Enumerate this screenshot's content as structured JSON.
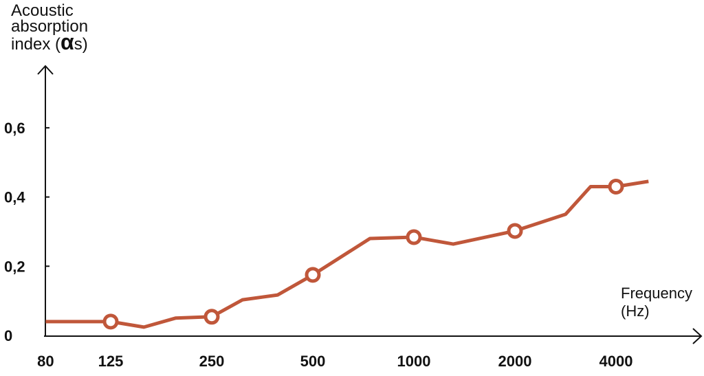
{
  "chart_data": {
    "type": "line",
    "ylabel_lines": [
      "Acoustic",
      "absorption",
      "index ("
    ],
    "ylabel_symbol": "α",
    "ylabel_subscript": "s)",
    "xlabel_lines": [
      "Frequency",
      "(Hz)"
    ],
    "x_scale": "log",
    "x_ticks": [
      80,
      125,
      250,
      500,
      1000,
      2000,
      4000
    ],
    "x_tick_labels": [
      "80",
      "125",
      "250",
      "500",
      "1000",
      "2000",
      "4000"
    ],
    "y_ticks": [
      0,
      0.2,
      0.4,
      0.6
    ],
    "y_tick_labels": [
      "0",
      "0,2",
      "0,4",
      "0,6"
    ],
    "xlim": [
      80,
      8000
    ],
    "ylim": [
      0,
      0.78
    ],
    "grid": false,
    "line_color": "#c0573a",
    "series": [
      {
        "x": [
          80,
          125,
          157,
          195,
          250,
          309,
          393,
          500,
          740,
          1000,
          1310,
          2000,
          2830,
          3360,
          4000,
          5000
        ],
        "y": [
          0.04,
          0.04,
          0.024,
          0.05,
          0.054,
          0.103,
          0.117,
          0.175,
          0.28,
          0.284,
          0.264,
          0.302,
          0.35,
          0.43,
          0.43,
          0.445
        ],
        "markers_at": [
          125,
          250,
          500,
          1000,
          2000,
          4000
        ]
      }
    ]
  }
}
